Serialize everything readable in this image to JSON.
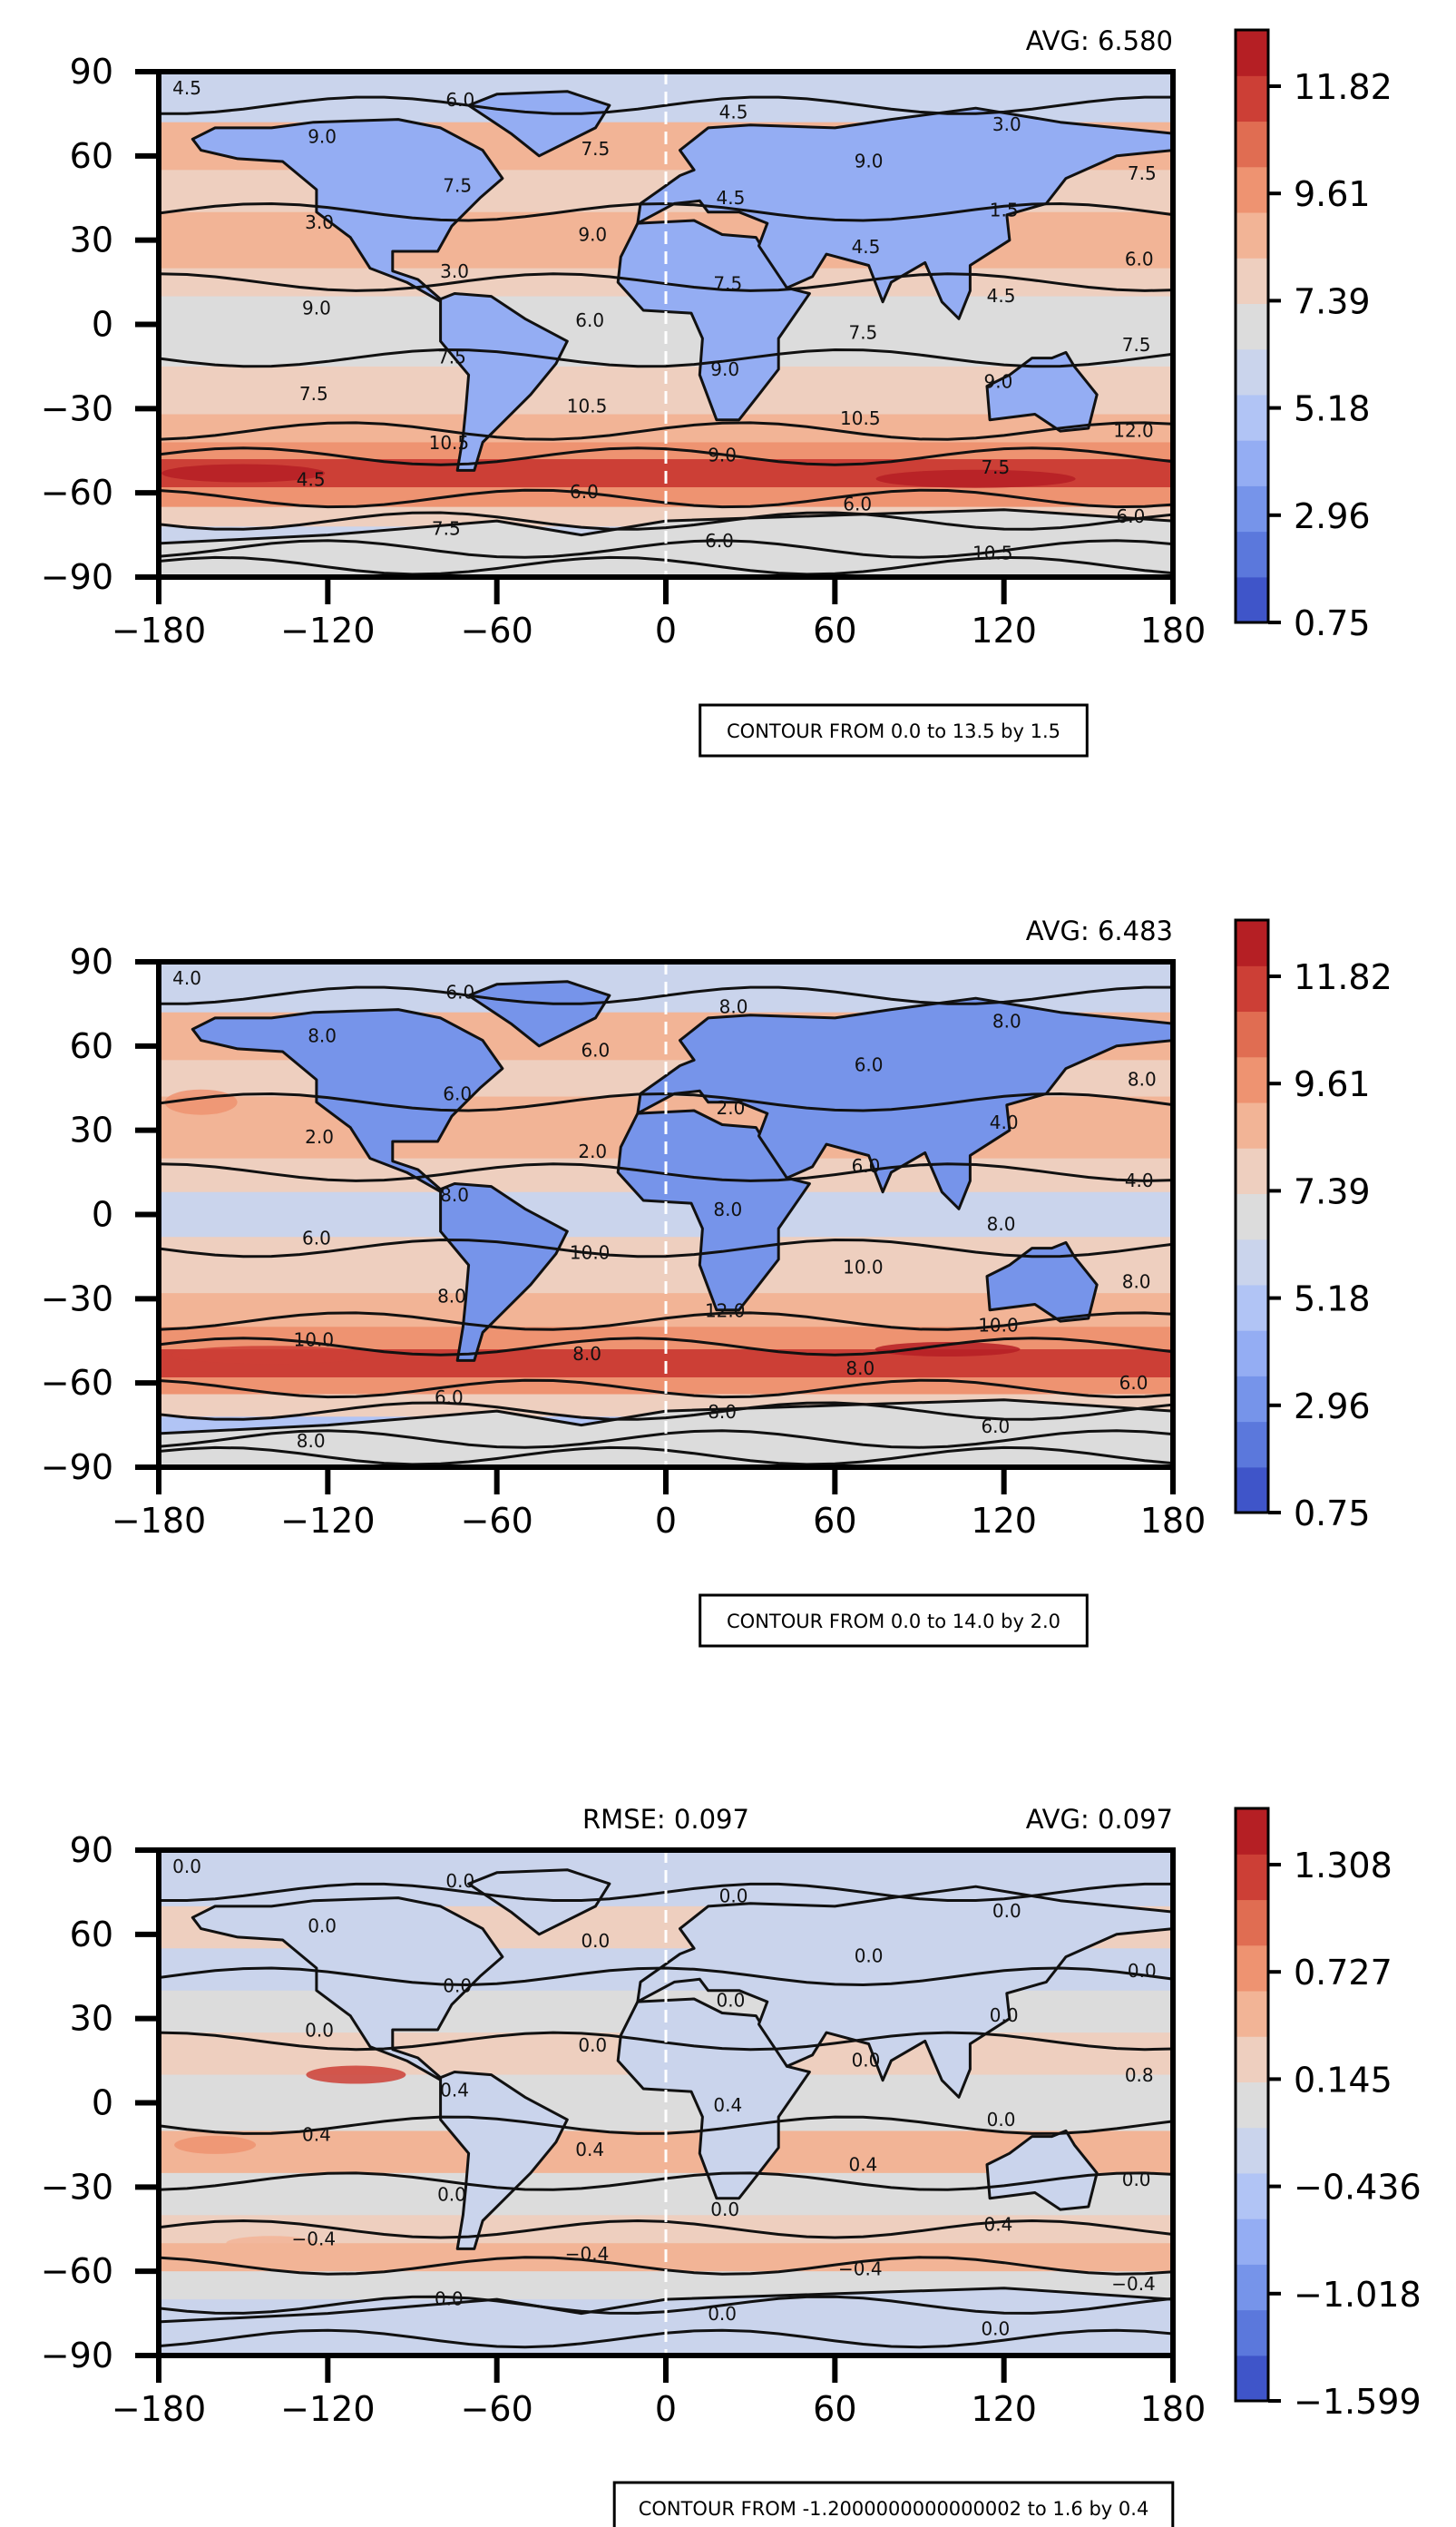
{
  "chart_data": [
    {
      "type": "heatmap",
      "id": "top",
      "avg_text": "AVG: 6.580",
      "rmse_text": "",
      "contour_text": "CONTOUR FROM 0.0 to 13.5 by 1.5",
      "xlim": [
        -180,
        180
      ],
      "ylim": [
        -90,
        90
      ],
      "xticks": [
        "−180",
        "−120",
        "−60",
        "0",
        "60",
        "120",
        "180"
      ],
      "yticks": [
        "90",
        "60",
        "30",
        "0",
        "−30",
        "−60",
        "−90"
      ],
      "colorbar": {
        "range": [
          0.75,
          12.9
        ],
        "tick_labels": [
          "11.82",
          "9.61",
          "7.39",
          "5.18",
          "2.96",
          "0.75"
        ],
        "colors": [
          "#3f55c9",
          "#5b78dc",
          "#7694ea",
          "#94adf3",
          "#b1c4f5",
          "#cad4ec",
          "#dcdcdc",
          "#eecfbf",
          "#f2b496",
          "#ee9371",
          "#e06d52",
          "#cc3f36",
          "#b51f24"
        ]
      },
      "contour_labels": [
        "4.5",
        "6.0",
        "4.5",
        "3.0",
        "9.0",
        "7.5",
        "9.0",
        "7.5",
        "7.5",
        "4.5",
        "1.5",
        "3.0",
        "9.0",
        "4.5",
        "6.0",
        "3.0",
        "7.5",
        "4.5",
        "9.0",
        "6.0",
        "7.5",
        "7.5",
        "7.5",
        "9.0",
        "9.0",
        "7.5",
        "10.5",
        "10.5",
        "12.0",
        "10.5",
        "9.0",
        "7.5",
        "4.5",
        "6.0",
        "6.0",
        "6.0",
        "7.5",
        "6.0",
        "10.5"
      ]
    },
    {
      "type": "heatmap",
      "id": "middle",
      "avg_text": "AVG: 6.483",
      "rmse_text": "",
      "contour_text": "CONTOUR FROM 0.0 to 14.0 by 2.0",
      "xlim": [
        -180,
        180
      ],
      "ylim": [
        -90,
        90
      ],
      "xticks": [
        "−180",
        "−120",
        "−60",
        "0",
        "60",
        "120",
        "180"
      ],
      "yticks": [
        "90",
        "60",
        "30",
        "0",
        "−30",
        "−60",
        "−90"
      ],
      "colorbar": {
        "range": [
          0.75,
          12.9
        ],
        "tick_labels": [
          "11.82",
          "9.61",
          "7.39",
          "5.18",
          "2.96",
          "0.75"
        ],
        "colors": [
          "#3f55c9",
          "#5b78dc",
          "#7694ea",
          "#94adf3",
          "#b1c4f5",
          "#cad4ec",
          "#dcdcdc",
          "#eecfbf",
          "#f2b496",
          "#ee9371",
          "#e06d52",
          "#cc3f36",
          "#b51f24"
        ]
      },
      "contour_labels": [
        "4.0",
        "6.0",
        "8.0",
        "8.0",
        "8.0",
        "6.0",
        "6.0",
        "8.0",
        "6.0",
        "2.0",
        "4.0",
        "2.0",
        "2.0",
        "6.0",
        "4.0",
        "8.0",
        "8.0",
        "8.0",
        "6.0",
        "10.0",
        "10.0",
        "8.0",
        "8.0",
        "12.0",
        "10.0",
        "10.0",
        "8.0",
        "8.0",
        "6.0",
        "6.0",
        "8.0",
        "6.0",
        "8.0"
      ]
    },
    {
      "type": "heatmap",
      "id": "bottom",
      "avg_text": "AVG: 0.097",
      "rmse_text": "RMSE: 0.097",
      "contour_text": "CONTOUR FROM -1.2000000000000002 to 1.6 by 0.4",
      "xlim": [
        -180,
        180
      ],
      "ylim": [
        -90,
        90
      ],
      "xticks": [
        "−180",
        "−120",
        "−60",
        "0",
        "60",
        "120",
        "180"
      ],
      "yticks": [
        "90",
        "60",
        "30",
        "0",
        "−30",
        "−60",
        "−90"
      ],
      "colorbar": {
        "range": [
          -1.599,
          1.6
        ],
        "tick_labels": [
          "1.308",
          "0.727",
          "0.145",
          "−0.436",
          "−1.018",
          "−1.599"
        ],
        "colors": [
          "#3f55c9",
          "#5b78dc",
          "#7694ea",
          "#94adf3",
          "#b1c4f5",
          "#cad4ec",
          "#dcdcdc",
          "#eecfbf",
          "#f2b496",
          "#ee9371",
          "#e06d52",
          "#cc3f36",
          "#b51f24"
        ]
      },
      "contour_labels": [
        "0.0",
        "0.0",
        "0.0",
        "0.0",
        "0.0",
        "0.0",
        "0.0",
        "0.0",
        "0.0",
        "0.0",
        "0.0",
        "0.0",
        "0.0",
        "0.0",
        "0.8",
        "0.4",
        "0.4",
        "0.0",
        "0.4",
        "0.4",
        "0.4",
        "0.0",
        "0.0",
        "0.0",
        "0.4",
        "−0.4",
        "−0.4",
        "−0.4",
        "−0.4",
        "0.0",
        "0.0",
        "0.0"
      ]
    }
  ]
}
